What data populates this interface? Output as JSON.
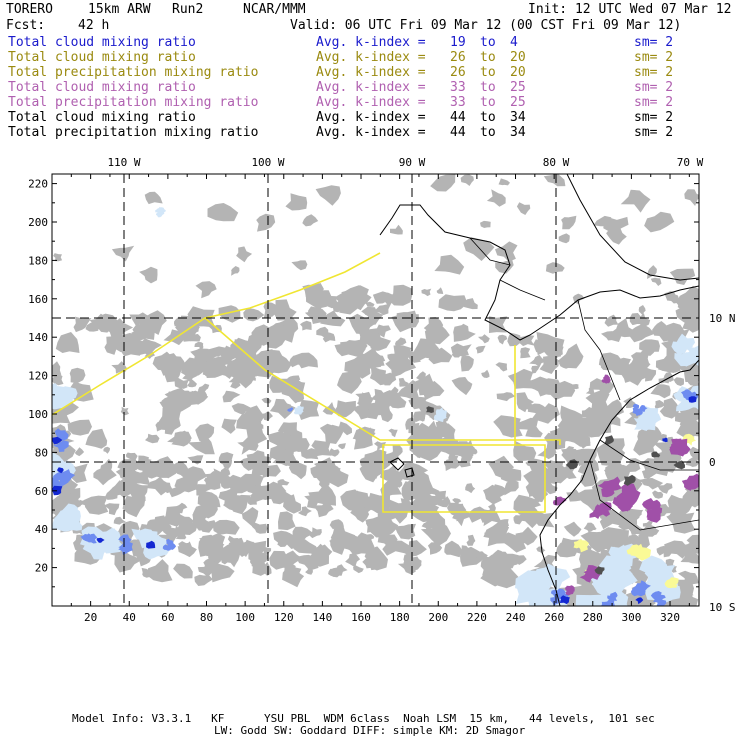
{
  "header": {
    "model": "TORERO",
    "resolution": "15km ARW",
    "run": "Run2",
    "org": "NCAR/MMM",
    "init": "Init: 12 UTC Wed 07 Mar 12",
    "fcst_label": "Fcst:",
    "fcst_value": "42 h",
    "valid": "Valid: 06 UTC Fri 09 Mar 12 (00 CST Fri 09 Mar 12)"
  },
  "legend": [
    {
      "field": "Total cloud mixing ratio",
      "idx_label": "Avg. k-index =",
      "k1": "19",
      "to": "to",
      "k2": "4",
      "sm": "sm= 2",
      "color": "#1a1acc"
    },
    {
      "field": "Total cloud mixing ratio",
      "idx_label": "Avg. k-index =",
      "k1": "26",
      "to": "to",
      "k2": "20",
      "sm": "sm= 2",
      "color": "#9a8a10"
    },
    {
      "field": "Total precipitation mixing ratio",
      "idx_label": "Avg. k-index =",
      "k1": "26",
      "to": "to",
      "k2": "20",
      "sm": "sm= 2",
      "color": "#9a8a10"
    },
    {
      "field": "Total cloud mixing ratio",
      "idx_label": "Avg. k-index =",
      "k1": "33",
      "to": "to",
      "k2": "25",
      "sm": "sm= 2",
      "color": "#b060b0"
    },
    {
      "field": "Total precipitation mixing ratio",
      "idx_label": "Avg. k-index =",
      "k1": "33",
      "to": "to",
      "k2": "25",
      "sm": "sm= 2",
      "color": "#b060b0"
    },
    {
      "field": "Total cloud mixing ratio",
      "idx_label": "Avg. k-index =",
      "k1": "44",
      "to": "to",
      "k2": "34",
      "sm": "sm= 2",
      "color": "#000000"
    },
    {
      "field": "Total precipitation mixing ratio",
      "idx_label": "Avg. k-index =",
      "k1": "44",
      "to": "to",
      "k2": "34",
      "sm": "sm= 2",
      "color": "#000000"
    }
  ],
  "map": {
    "lon_labels": [
      "110 W",
      "100 W",
      "90 W",
      "80 W",
      "70 W"
    ],
    "lat_labels": [
      "10 N",
      "0",
      "10 S"
    ],
    "x_ticks": [
      "20",
      "40",
      "60",
      "80",
      "100",
      "120",
      "140",
      "160",
      "180",
      "200",
      "220",
      "240",
      "260",
      "280",
      "300",
      "320"
    ],
    "y_ticks": [
      "20",
      "40",
      "60",
      "80",
      "100",
      "120",
      "140",
      "160",
      "180",
      "200",
      "220"
    ],
    "grid_i_range": [
      0,
      335
    ],
    "grid_j_range": [
      0,
      225
    ],
    "colors": {
      "cloud_gray": "#b4b4b4",
      "cloud_dark": "#505050",
      "light_blue": "#d2e6f8",
      "mid_blue": "#6e8cf0",
      "deep_blue": "#1428d2",
      "purple": "#a050a8",
      "yellow_fill": "#fafa96",
      "boundary_yellow": "#f0e632",
      "coast": "#000000",
      "grid_lines": "#000000"
    }
  },
  "footer": {
    "line1": "Model Info: V3.3.1   KF      YSU PBL  WDM 6class  Noah LSM  15 km,   44 levels,  101 sec",
    "line2": "LW: Godd SW: Goddard DIFF: simple KM: 2D Smagor"
  }
}
